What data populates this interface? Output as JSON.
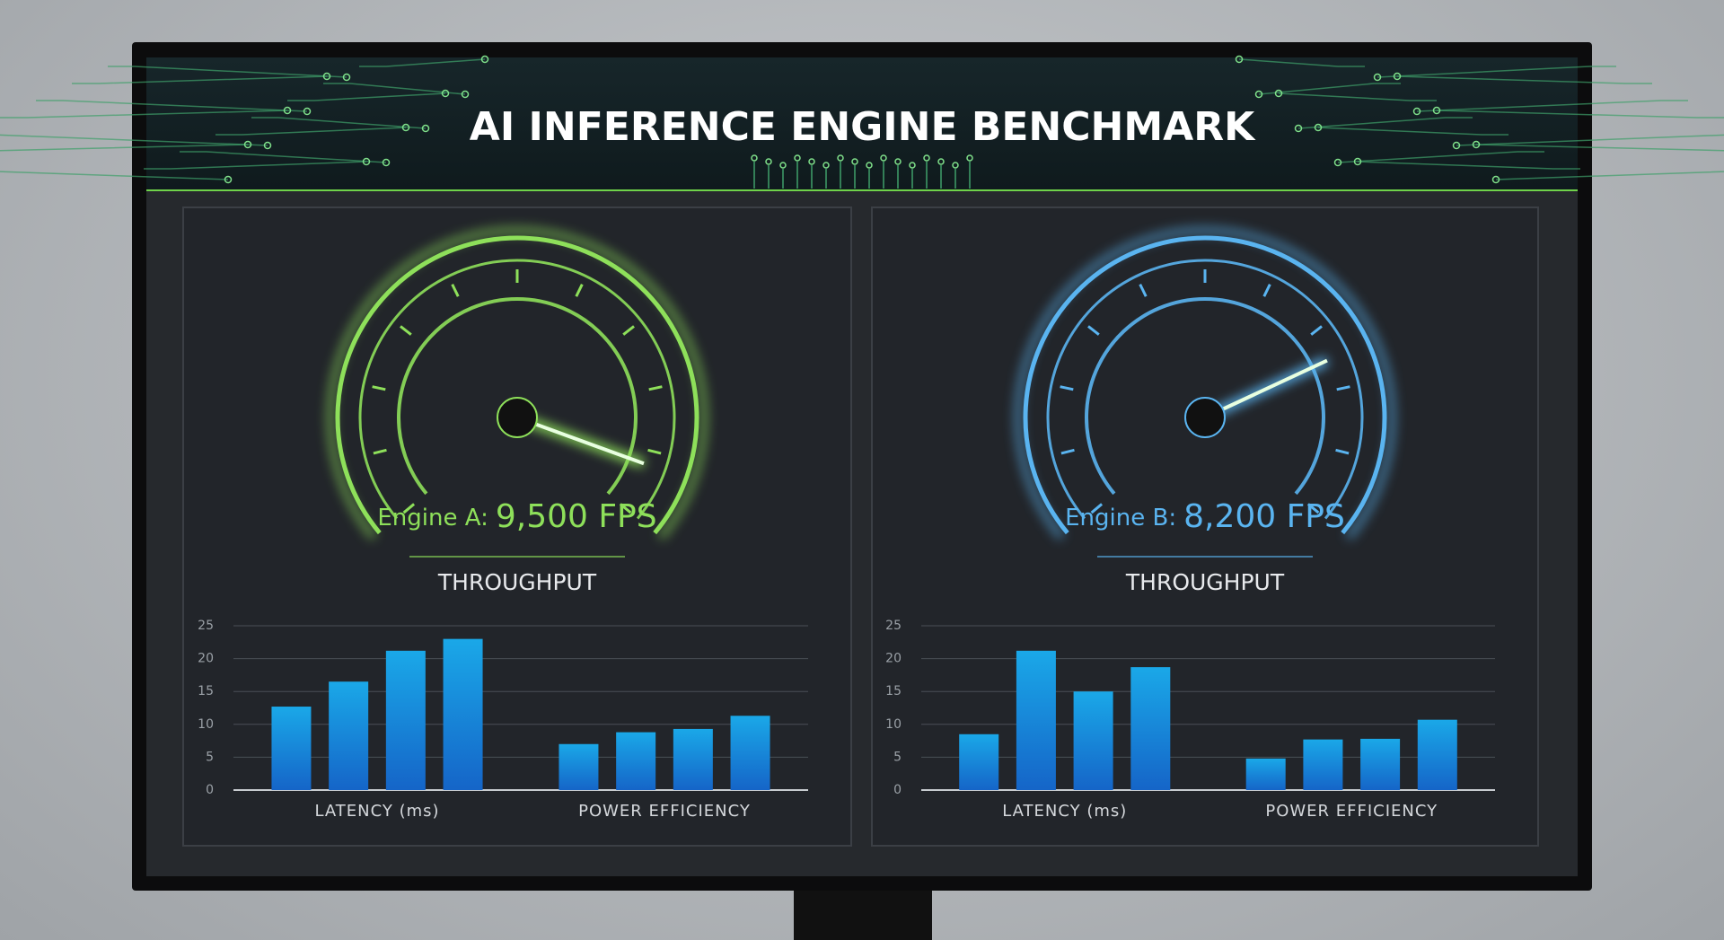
{
  "header": {
    "title": "AI INFERENCE ENGINE BENCHMARK"
  },
  "gauges": [
    {
      "label": "Engine A:",
      "value": "9,500 FPS",
      "caption": "THROUGHPUT",
      "color": "#8ee05a"
    },
    {
      "label": "Engine B:",
      "value": "8,200 FPS",
      "caption": "THROUGHPUT",
      "color": "#5ab4f0"
    }
  ],
  "chart_data": [
    {
      "type": "bar",
      "categories": [
        "LATENCY (ms)",
        "POWER EFFICIENCY"
      ],
      "series": [
        {
          "color": "#1aa8e8",
          "values": [
            12.7,
            7
          ]
        },
        {
          "color": "#1aa8e8",
          "values": [
            16.5,
            8.8
          ]
        },
        {
          "color": "#1aa8e8",
          "values": [
            21.2,
            9.3
          ]
        },
        {
          "color": "#1aa8e8",
          "values": [
            23,
            11.3
          ]
        }
      ],
      "ylim": [
        0,
        25
      ],
      "yticks": [
        0,
        5,
        10,
        15,
        20,
        25
      ],
      "grid": true
    },
    {
      "type": "bar",
      "categories": [
        "LATENCY (ms)",
        "POWER EFFICIENCY"
      ],
      "series": [
        {
          "color": "#1aa8e8",
          "values": [
            8.5,
            4.8
          ]
        },
        {
          "color": "#1aa8e8",
          "values": [
            21.2,
            7.7
          ]
        },
        {
          "color": "#1aa8e8",
          "values": [
            15,
            7.8
          ]
        },
        {
          "color": "#1aa8e8",
          "values": [
            18.7,
            10.7
          ]
        }
      ],
      "ylim": [
        0,
        25
      ],
      "yticks": [
        0,
        5,
        10,
        15,
        20,
        25
      ],
      "grid": true
    }
  ]
}
